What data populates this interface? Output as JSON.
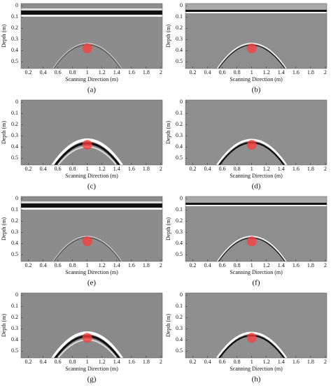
{
  "figure": {
    "x_label": "Scanning Direction (m)",
    "y_label": "Depth (m)",
    "xlim": [
      0.1,
      2.02
    ],
    "ylim": [
      -0.02,
      0.56
    ],
    "xticks": [
      0.2,
      0.4,
      0.6,
      0.8,
      1,
      1.2,
      1.4,
      1.6,
      1.8,
      2
    ],
    "yticks": [
      0,
      0.1,
      0.2,
      0.3,
      0.4,
      0.5
    ],
    "panels": [
      "(a)",
      "(b)",
      "(c)",
      "(d)",
      "(e)",
      "(f)",
      "(g)",
      "(h)"
    ]
  }
}
